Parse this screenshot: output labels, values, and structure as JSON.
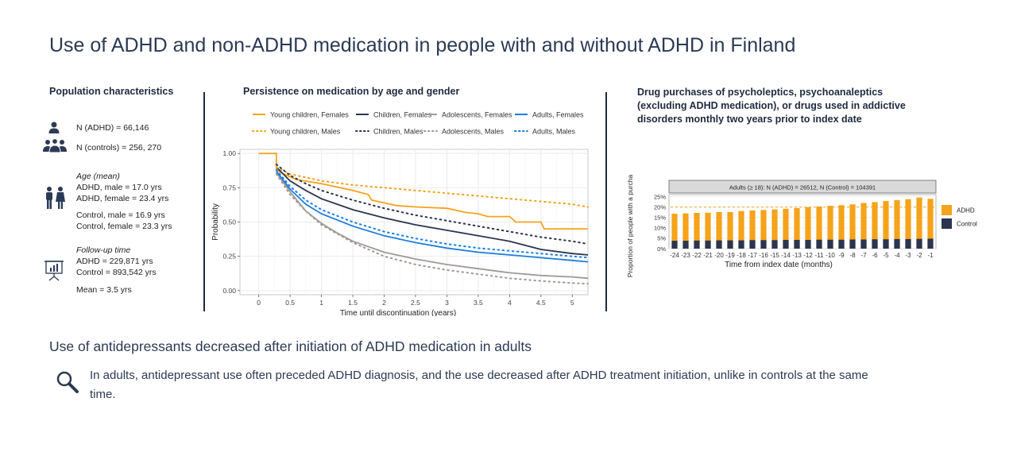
{
  "title": "Use of ADHD and non-ADHD medication in people with and without ADHD in Finland",
  "population": {
    "heading": "Population characteristics",
    "n_adhd": "N (ADHD) = 66,146",
    "n_controls": "N (controls) = 256, 270",
    "age_heading": "Age (mean)",
    "age_adhd_male": "ADHD, male = 17.0 yrs",
    "age_adhd_female": "ADHD, female = 23.4 yrs",
    "age_control_male": "Control, male = 16.9 yrs",
    "age_control_female": "Control, female = 23.3 yrs",
    "followup_heading": "Follow-up time",
    "followup_adhd": "ADHD = 229,871 yrs",
    "followup_control": "Control = 893,542 yrs",
    "followup_mean": "Mean = 3.5 yrs",
    "icons": [
      "person-icon",
      "group-icon",
      "couple-icon",
      "presentation-chart-icon"
    ]
  },
  "chart_data": [
    {
      "type": "line",
      "title": "Persistence on medication by age and gender",
      "xlabel": "Time until discontinuation (years)",
      "ylabel": "Probability",
      "xlim": [
        -0.3,
        5.25
      ],
      "ylim": [
        -0.03,
        1.03
      ],
      "xticks": [
        0,
        0.5,
        1,
        1.5,
        2,
        2.5,
        3,
        3.5,
        4,
        4.5,
        5
      ],
      "xtick_labels": [
        "0",
        "0.5",
        "1",
        "1.5",
        "2",
        "2.5",
        "3",
        "3.5",
        "4",
        "4.5",
        "5"
      ],
      "yticks": [
        0,
        0.25,
        0.5,
        0.75,
        1
      ],
      "ytick_labels": [
        "0.00",
        "0.25",
        "0.50",
        "0.75",
        "1.00"
      ],
      "grid": true,
      "legend_position": "top",
      "series": [
        {
          "name": "Young children, Females",
          "color": "#f5a31a",
          "dash": "solid",
          "step": true,
          "points": [
            [
              0,
              1
            ],
            [
              0.28,
              1
            ],
            [
              0.28,
              0.88
            ],
            [
              0.4,
              0.85
            ],
            [
              0.6,
              0.81
            ],
            [
              1,
              0.78
            ],
            [
              1.5,
              0.73
            ],
            [
              1.75,
              0.7
            ],
            [
              1.8,
              0.66
            ],
            [
              2.2,
              0.62
            ],
            [
              2.5,
              0.61
            ],
            [
              3,
              0.6
            ],
            [
              3.3,
              0.57
            ],
            [
              3.5,
              0.56
            ],
            [
              3.65,
              0.54
            ],
            [
              4,
              0.54
            ],
            [
              4.1,
              0.5
            ],
            [
              4.5,
              0.5
            ],
            [
              4.55,
              0.45
            ],
            [
              5.25,
              0.45
            ]
          ]
        },
        {
          "name": "Children, Females",
          "color": "#2a3550",
          "dash": "solid",
          "points": [
            [
              0.28,
              0.9
            ],
            [
              0.5,
              0.8
            ],
            [
              0.75,
              0.73
            ],
            [
              1,
              0.67
            ],
            [
              1.5,
              0.59
            ],
            [
              2,
              0.53
            ],
            [
              2.5,
              0.48
            ],
            [
              3,
              0.44
            ],
            [
              3.5,
              0.4
            ],
            [
              4,
              0.36
            ],
            [
              4.5,
              0.3
            ],
            [
              5,
              0.27
            ],
            [
              5.25,
              0.26
            ]
          ]
        },
        {
          "name": "Adolescents, Females",
          "color": "#a09a95",
          "dash": "solid",
          "points": [
            [
              0.28,
              0.86
            ],
            [
              0.5,
              0.72
            ],
            [
              0.75,
              0.58
            ],
            [
              1,
              0.49
            ],
            [
              1.25,
              0.42
            ],
            [
              1.5,
              0.36
            ],
            [
              2,
              0.28
            ],
            [
              2.5,
              0.23
            ],
            [
              3,
              0.19
            ],
            [
              3.5,
              0.16
            ],
            [
              4,
              0.13
            ],
            [
              4.5,
              0.11
            ],
            [
              5,
              0.1
            ],
            [
              5.25,
              0.09
            ]
          ]
        },
        {
          "name": "Adults, Females",
          "color": "#1b7ee0",
          "dash": "solid",
          "points": [
            [
              0.28,
              0.87
            ],
            [
              0.5,
              0.74
            ],
            [
              0.75,
              0.63
            ],
            [
              1,
              0.56
            ],
            [
              1.5,
              0.47
            ],
            [
              2,
              0.4
            ],
            [
              2.5,
              0.35
            ],
            [
              3,
              0.31
            ],
            [
              3.5,
              0.28
            ],
            [
              4,
              0.26
            ],
            [
              4.5,
              0.24
            ],
            [
              5,
              0.22
            ],
            [
              5.25,
              0.21
            ]
          ]
        },
        {
          "name": "Young children, Males",
          "color": "#f5a31a",
          "dash": "dotted",
          "points": [
            [
              0.28,
              0.9
            ],
            [
              0.5,
              0.85
            ],
            [
              1,
              0.8
            ],
            [
              1.5,
              0.77
            ],
            [
              2,
              0.75
            ],
            [
              2.5,
              0.73
            ],
            [
              3,
              0.71
            ],
            [
              3.5,
              0.69
            ],
            [
              4,
              0.67
            ],
            [
              4.5,
              0.65
            ],
            [
              5,
              0.63
            ],
            [
              5.25,
              0.61
            ]
          ]
        },
        {
          "name": "Children, Males",
          "color": "#2a3550",
          "dash": "dotted",
          "points": [
            [
              0.28,
              0.92
            ],
            [
              0.5,
              0.84
            ],
            [
              0.75,
              0.78
            ],
            [
              1,
              0.73
            ],
            [
              1.5,
              0.66
            ],
            [
              2,
              0.6
            ],
            [
              2.5,
              0.55
            ],
            [
              3,
              0.51
            ],
            [
              3.5,
              0.47
            ],
            [
              4,
              0.43
            ],
            [
              4.5,
              0.39
            ],
            [
              5,
              0.36
            ],
            [
              5.25,
              0.34
            ]
          ]
        },
        {
          "name": "Adolescents, Males",
          "color": "#a09a95",
          "dash": "dotted",
          "points": [
            [
              0.28,
              0.85
            ],
            [
              0.5,
              0.7
            ],
            [
              0.75,
              0.58
            ],
            [
              1,
              0.48
            ],
            [
              1.5,
              0.35
            ],
            [
              2,
              0.25
            ],
            [
              2.5,
              0.19
            ],
            [
              3,
              0.15
            ],
            [
              3.5,
              0.12
            ],
            [
              4,
              0.09
            ],
            [
              4.5,
              0.07
            ],
            [
              5,
              0.055
            ],
            [
              5.25,
              0.05
            ]
          ]
        },
        {
          "name": "Adults, Males",
          "color": "#1b7ee0",
          "dash": "dotted",
          "points": [
            [
              0.28,
              0.88
            ],
            [
              0.5,
              0.76
            ],
            [
              0.75,
              0.66
            ],
            [
              1,
              0.59
            ],
            [
              1.5,
              0.5
            ],
            [
              2,
              0.43
            ],
            [
              2.5,
              0.38
            ],
            [
              3,
              0.34
            ],
            [
              3.5,
              0.31
            ],
            [
              4,
              0.29
            ],
            [
              4.5,
              0.27
            ],
            [
              5,
              0.25
            ],
            [
              5.25,
              0.24
            ]
          ]
        }
      ]
    },
    {
      "type": "bar",
      "title": "Drug purchases of psycholeptics, psychoanaleptics (excluding ADHD medication), or drugs used in addictive disorders monthly two years prior to index date",
      "panel_label": "Adults (≥ 18): N (ADHD) = 26512, N (Control) = 104391",
      "xlabel": "Time from index date (months)",
      "ylabel": "Proportion of people with a purchase",
      "ylim": [
        0,
        0.26
      ],
      "yticks": [
        0,
        0.05,
        0.1,
        0.15,
        0.2,
        0.25
      ],
      "ytick_labels": [
        "0%",
        "5%",
        "10%",
        "15%",
        "20%",
        "25%"
      ],
      "reference_line": 0.2,
      "grid": true,
      "legend_position": "right",
      "categories": [
        "-24",
        "-23",
        "-22",
        "-21",
        "-20",
        "-19",
        "-18",
        "-17",
        "-16",
        "-15",
        "-14",
        "-13",
        "-12",
        "-11",
        "-10",
        "-9",
        "-8",
        "-7",
        "-6",
        "-5",
        "-4",
        "-3",
        "-2",
        "-1"
      ],
      "series": [
        {
          "name": "ADHD",
          "color": "#f5a31a",
          "values": [
            0.168,
            0.17,
            0.172,
            0.173,
            0.176,
            0.176,
            0.181,
            0.184,
            0.186,
            0.189,
            0.192,
            0.195,
            0.199,
            0.203,
            0.206,
            0.209,
            0.213,
            0.22,
            0.224,
            0.229,
            0.234,
            0.238,
            0.246,
            0.24
          ]
        },
        {
          "name": "Control",
          "color": "#2a3550",
          "values": [
            0.038,
            0.038,
            0.039,
            0.039,
            0.04,
            0.04,
            0.04,
            0.041,
            0.041,
            0.041,
            0.042,
            0.042,
            0.042,
            0.043,
            0.043,
            0.043,
            0.044,
            0.044,
            0.045,
            0.045,
            0.046,
            0.046,
            0.047,
            0.048
          ]
        }
      ]
    }
  ],
  "conclusion": {
    "heading": "Use of antidepressants decreased after initiation of ADHD medication in adults",
    "text": "In adults, antidepressant use often preceded ADHD diagnosis, and the use decreased after ADHD treatment initiation, unlike in controls at the same time.",
    "icon": "magnifier-icon"
  }
}
